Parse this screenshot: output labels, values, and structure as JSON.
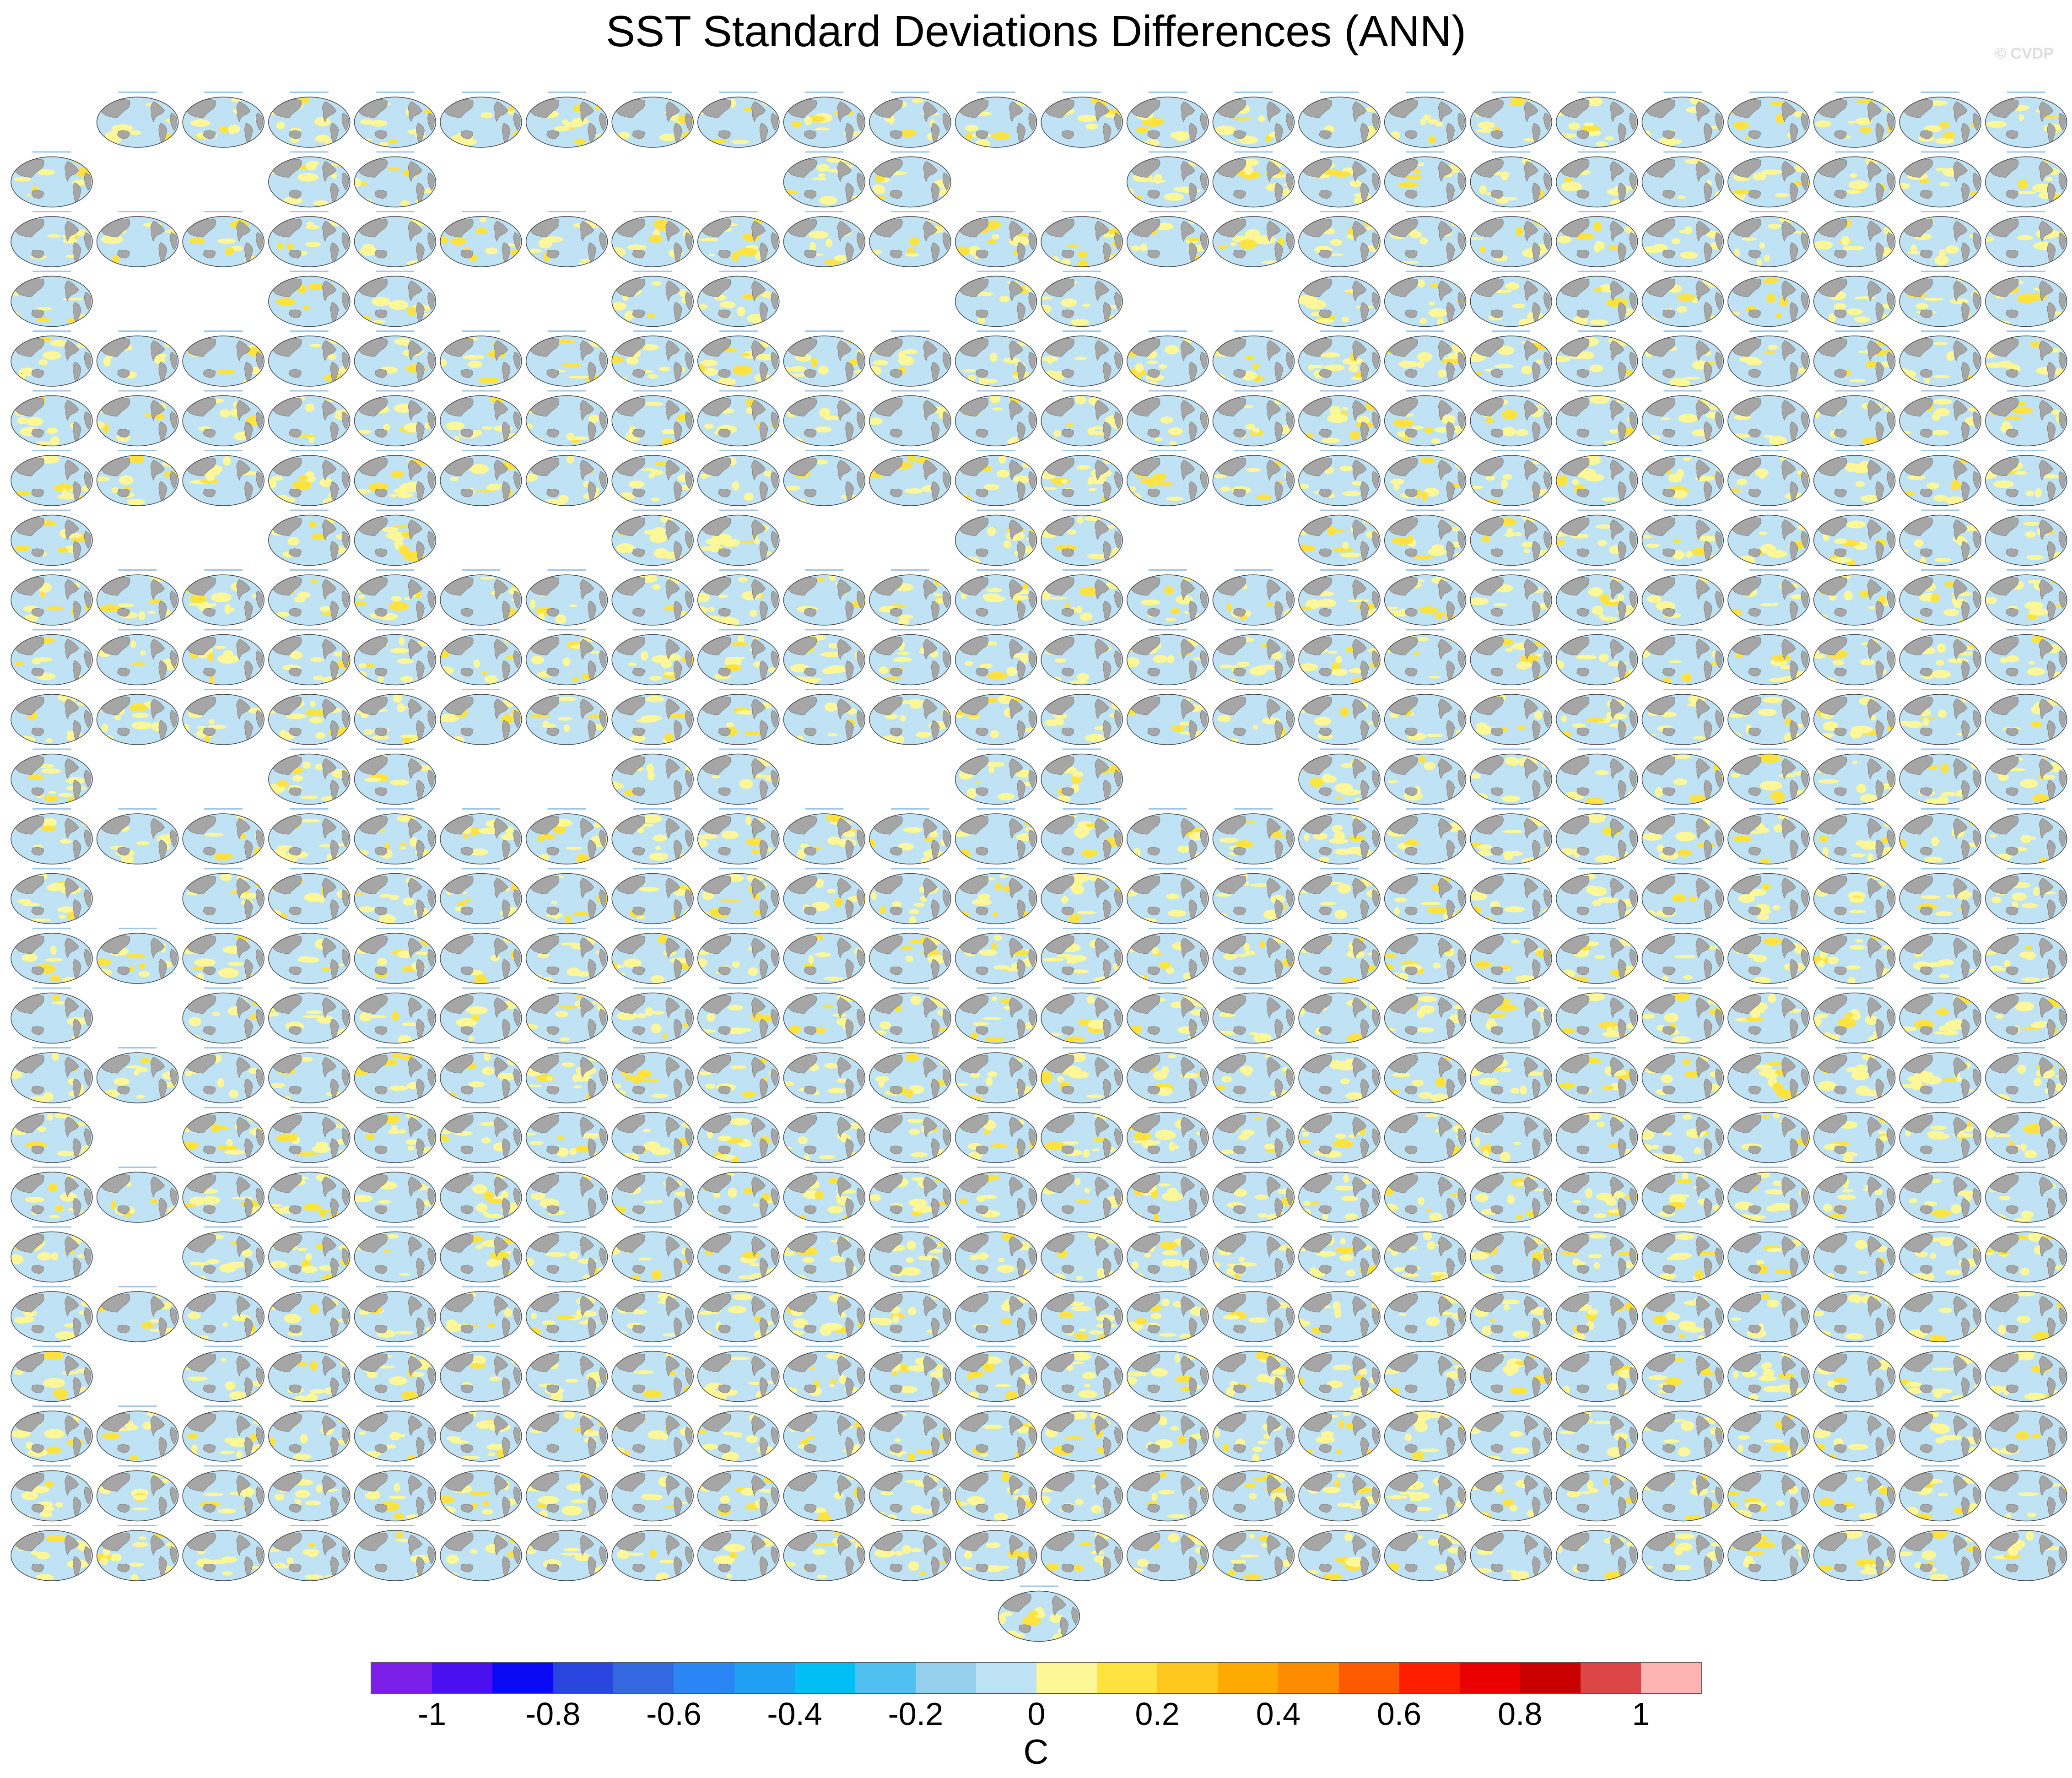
{
  "chart_data": {
    "type": "heatmap",
    "title": "SST Standard Deviations Differences (ANN)",
    "watermark": "© CVDP",
    "panel_layout": {
      "columns": 24,
      "rows": 25,
      "row_occupancy": [
        "011111111111111111111111",
        "100110000110011111111111",
        "111111111111111111111111",
        "100110011001100111111111",
        "111111111111111111111111",
        "111111111111111111111111",
        "111111111111111111111111",
        "100110011001100111111111",
        "111111111111111111111111",
        "111111111111111111111111",
        "111111111111111111111111",
        "100110011001100111111111",
        "111111111111111111111111",
        "101111111111111111111111",
        "111111111111111111111111",
        "101111111111111111111111",
        "111111111111111111111111",
        "101111111111111111111111",
        "111111111111111111111111",
        "101111111111111111111111",
        "111111111111111111111111",
        "101111111111111111111111",
        "111111111111111111111111",
        "111111111111111111111111",
        "111111111111111111111111"
      ],
      "extra_panel_row": 25,
      "extra_panel_column": 11.5
    },
    "panel_map": {
      "projection": "Robinson",
      "land_color": "#a6a6a6",
      "background_color": "#bfe3f5"
    },
    "colorbar": {
      "unit_label": "C",
      "tick_labels": [
        "-1",
        "-0.8",
        "-0.6",
        "-0.4",
        "-0.2",
        "0",
        "0.2",
        "0.4",
        "0.6",
        "0.8",
        "1"
      ],
      "tick_values": [
        -1,
        -0.8,
        -0.6,
        -0.4,
        -0.2,
        0,
        0.2,
        0.4,
        0.6,
        0.8,
        1
      ],
      "range": [
        -1.1,
        1.1
      ],
      "colors": [
        "#7a1ee8",
        "#4a10f0",
        "#0a0af5",
        "#2a45e0",
        "#3468e0",
        "#2a85f5",
        "#1ea0f5",
        "#00bff5",
        "#50c0f0",
        "#96d0ee",
        "#bee3f5",
        "#fdf798",
        "#fee340",
        "#ffc81e",
        "#ffaa00",
        "#ff8c00",
        "#ff5a00",
        "#ff1e00",
        "#ea0000",
        "#c80000",
        "#dc4646",
        "#ffb4b4"
      ]
    }
  }
}
